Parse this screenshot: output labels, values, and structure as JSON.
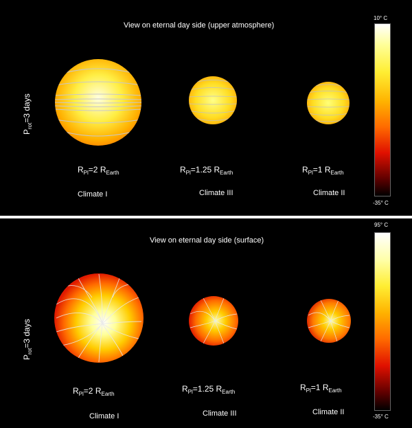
{
  "top": {
    "title": "View on eternal day side (upper atmosphere)",
    "rotation": {
      "p": "P",
      "sub": "rot",
      "val": "=3 days"
    },
    "colorbar": {
      "max": "10° C",
      "min": "-35° C"
    },
    "planets": [
      {
        "r_prefix": "R",
        "r_sub": "Pl",
        "r_mid": "=2 R",
        "r_sub2": "Earth",
        "climate": "Climate I"
      },
      {
        "r_prefix": "R",
        "r_sub": "Pl",
        "r_mid": "=1.25 R",
        "r_sub2": "Earth",
        "climate": "Climate III"
      },
      {
        "r_prefix": "R",
        "r_sub": "Pl",
        "r_mid": "=1 R",
        "r_sub2": "Earth",
        "climate": "Climate II"
      }
    ]
  },
  "bottom": {
    "title": "View on eternal day side (surface)",
    "rotation": {
      "p": "P",
      "sub": "rot",
      "val": "=3 days"
    },
    "colorbar": {
      "max": "95° C",
      "min": "-35° C"
    },
    "planets": [
      {
        "r_prefix": "R",
        "r_sub": "Pl",
        "r_mid": "=2 R",
        "r_sub2": "Earth",
        "climate": "Climate I"
      },
      {
        "r_prefix": "R",
        "r_sub": "Pl",
        "r_mid": "=1.25 R",
        "r_sub2": "Earth",
        "climate": "Climate III"
      },
      {
        "r_prefix": "R",
        "r_sub": "Pl",
        "r_mid": "=1 R",
        "r_sub2": "Earth",
        "climate": "Climate II"
      }
    ]
  },
  "colors": {
    "hot": "#ffffff",
    "warm": "#ffff66",
    "mid": "#ff8a00",
    "cool": "#e01000",
    "cold": "#500000",
    "coldest": "#000000",
    "streamline": "#d0d0d0"
  }
}
